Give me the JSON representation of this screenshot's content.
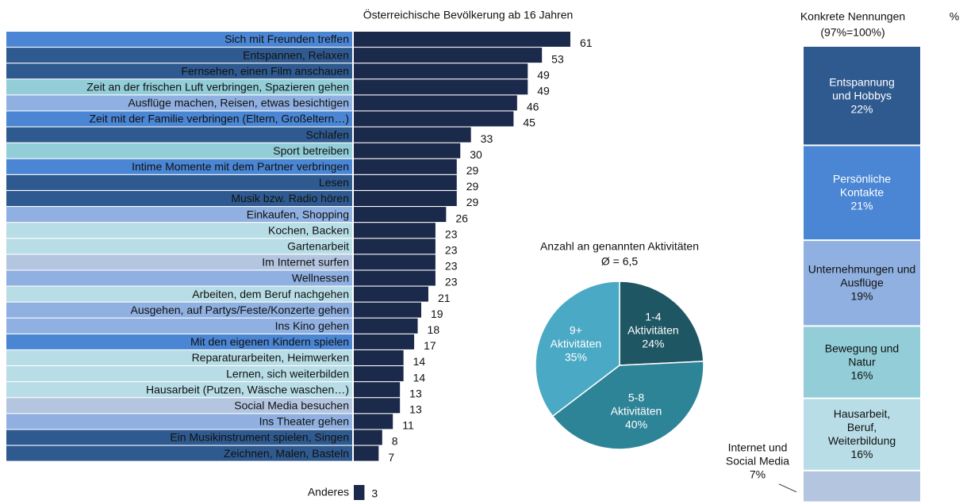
{
  "chart_data": [
    {
      "type": "bar",
      "orientation": "horizontal",
      "title": "Österreichische Bevölkerung ab 16 Jahren",
      "categories": [
        "Sich mit Freunden treffen",
        "Entspannen, Relaxen",
        "Fernsehen, einen Film anschauen",
        "Zeit an der frischen Luft verbringen, Spazieren gehen",
        "Ausflüge machen, Reisen, etwas besichtigen",
        "Zeit mit der Familie verbringen (Eltern, Großeltern…)",
        "Schlafen",
        "Sport betreiben",
        "Intime Momente mit dem Partner verbringen",
        "Lesen",
        "Musik bzw. Radio hören",
        "Einkaufen, Shopping",
        "Kochen, Backen",
        "Gartenarbeit",
        "Im Internet surfen",
        "Wellnessen",
        "Arbeiten, dem Beruf nachgehen",
        "Ausgehen, auf Partys/Feste/Konzerte gehen",
        "Ins Kino gehen",
        "Mit den eigenen Kindern spielen",
        "Reparaturarbeiten, Heimwerken",
        "Lernen, sich weiterbilden",
        "Hausarbeit (Putzen, Wäsche waschen…)",
        "Social Media besuchen",
        "Ins Theater gehen",
        "Ein Musikinstrument spielen, Singen",
        "Zeichnen, Malen, Basteln"
      ],
      "values": [
        61,
        53,
        49,
        49,
        46,
        45,
        33,
        30,
        29,
        29,
        29,
        26,
        23,
        23,
        23,
        23,
        21,
        19,
        18,
        17,
        14,
        14,
        13,
        13,
        11,
        8,
        7
      ],
      "label_colors": [
        "#4a86d4",
        "#2f5a8f",
        "#2f5a8f",
        "#92cdd8",
        "#8fb0e0",
        "#4a86d4",
        "#2f5a8f",
        "#92cdd8",
        "#4a86d4",
        "#2f5a8f",
        "#2f5a8f",
        "#8fb0e0",
        "#b8dde6",
        "#b8dde6",
        "#b4c5e0",
        "#8fb0e0",
        "#b8dde6",
        "#8fb0e0",
        "#8fb0e0",
        "#4a86d4",
        "#b8dde6",
        "#b8dde6",
        "#b8dde6",
        "#b4c5e0",
        "#8fb0e0",
        "#2f5a8f",
        "#2f5a8f"
      ],
      "color": "#1b2a4a",
      "other": {
        "category": "Anderes",
        "value": 3
      }
    },
    {
      "type": "pie",
      "title": "Anzahl an genannten Aktivitäten",
      "subtitle": "Ø = 6,5",
      "categories": [
        "1-4 Aktivitäten",
        "5-8 Aktivitäten",
        "9+ Aktivitäten"
      ],
      "values": [
        24,
        40,
        35
      ],
      "value_labels": [
        "24%",
        "40%",
        "35%"
      ],
      "colors": [
        "#1e5664",
        "#2e8497",
        "#4aa9c4"
      ]
    },
    {
      "type": "stacked_column",
      "title": "Konkrete Nennungen",
      "subtitle": "(97%=100%)",
      "unit_label": "%",
      "categories": [
        "Entspannung und Hobbys",
        "Persönliche Kontakte",
        "Unternehmungen und Ausflüge",
        "Bewegung und Natur",
        "Hausarbeit, Beruf, Weiterbildung",
        "Internet und Social Media"
      ],
      "values": [
        22,
        21,
        19,
        16,
        16,
        7
      ],
      "value_labels": [
        "22%",
        "21%",
        "19%",
        "16%",
        "16%",
        "7%"
      ],
      "colors": [
        "#2f5a8f",
        "#4a86d4",
        "#8fb0e0",
        "#92cdd8",
        "#b8dde6",
        "#b4c5e0"
      ]
    }
  ]
}
